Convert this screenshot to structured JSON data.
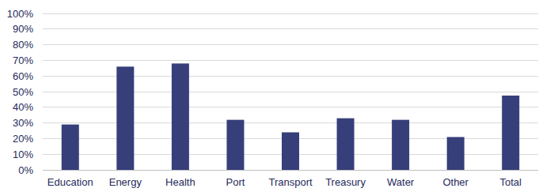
{
  "chart_data": {
    "type": "bar",
    "categories": [
      "Education",
      "Energy",
      "Health",
      "Port",
      "Transport",
      "Treasury",
      "Water",
      "Other",
      "Total"
    ],
    "values": [
      29,
      66,
      68,
      32,
      24,
      33,
      32,
      21,
      47.5
    ],
    "color": "#363f7a",
    "ylim": [
      0,
      100
    ],
    "yticks": [
      {
        "value": 0,
        "label": "0%"
      },
      {
        "value": 10,
        "label": "10%"
      },
      {
        "value": 20,
        "label": "20%"
      },
      {
        "value": 30,
        "label": "30%"
      },
      {
        "value": 40,
        "label": "40%"
      },
      {
        "value": 50,
        "label": "50%"
      },
      {
        "value": 60,
        "label": "60%"
      },
      {
        "value": 70,
        "label": "70%"
      },
      {
        "value": 80,
        "label": "80%"
      },
      {
        "value": 90,
        "label": "90%"
      },
      {
        "value": 100,
        "label": "100%"
      }
    ],
    "grid": true
  }
}
